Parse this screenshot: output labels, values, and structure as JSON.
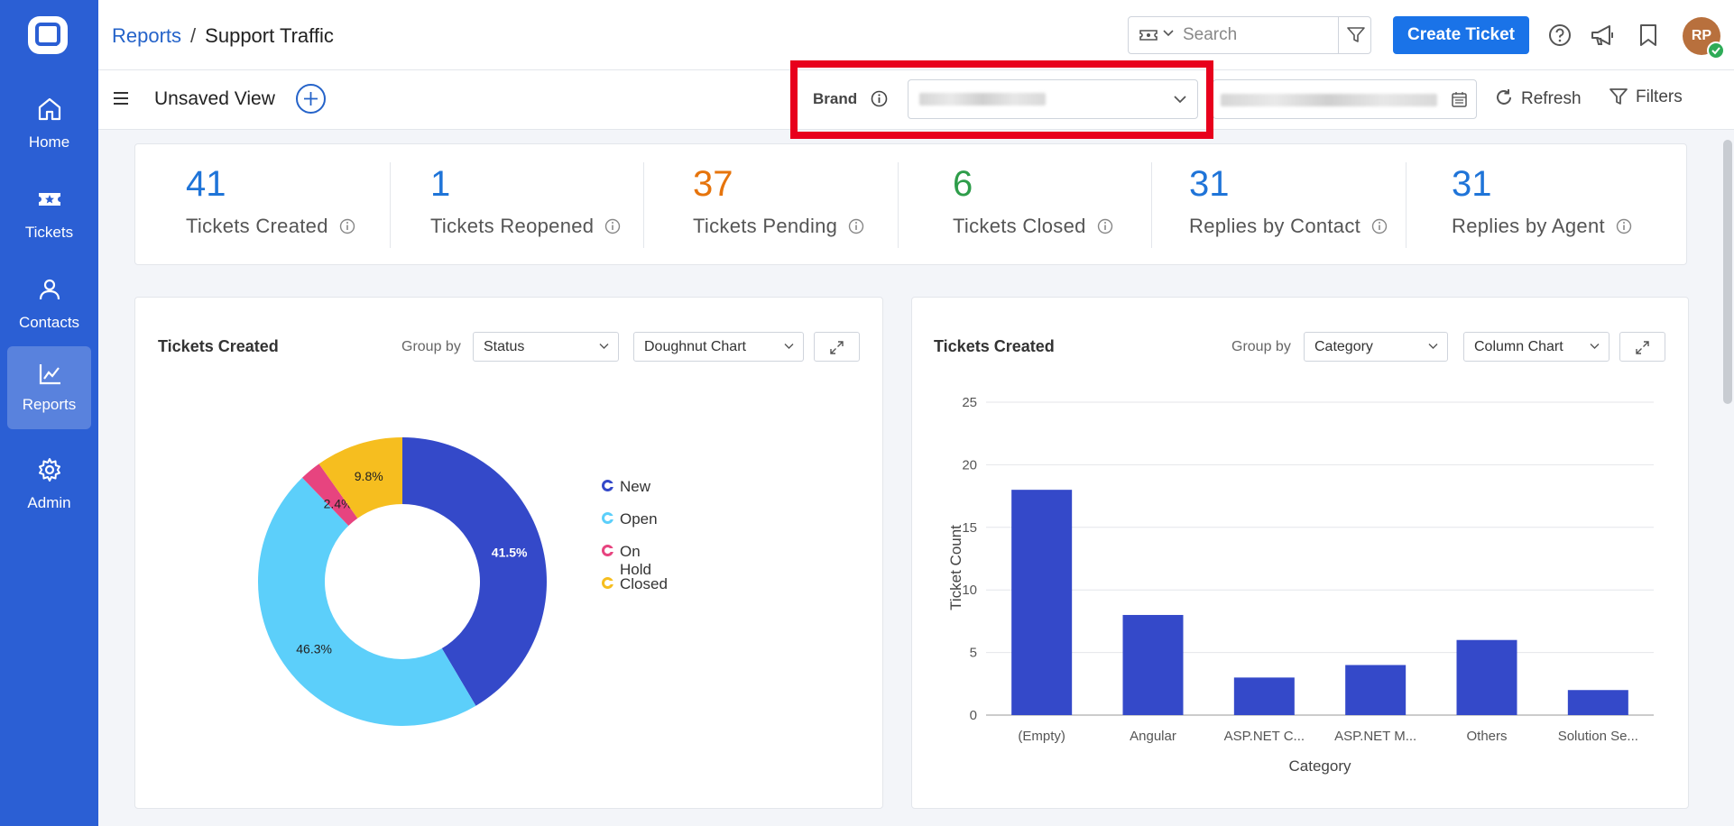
{
  "colors": {
    "sidebar": "#2b5fd4",
    "primary": "#1a73e8",
    "metric_blue": "#1f74d8",
    "metric_orange": "#e6740c",
    "metric_green": "#2e9d4a",
    "highlight": "#e8001c"
  },
  "sidebar": {
    "items": [
      {
        "label": "Home",
        "icon": "home-icon"
      },
      {
        "label": "Tickets",
        "icon": "ticket-icon"
      },
      {
        "label": "Contacts",
        "icon": "contact-icon"
      },
      {
        "label": "Reports",
        "icon": "chart-line-icon",
        "active": true
      },
      {
        "label": "Admin",
        "icon": "gear-icon"
      }
    ]
  },
  "header": {
    "breadcrumb_parent": "Reports",
    "breadcrumb_separator": "/",
    "breadcrumb_current": "Support Traffic",
    "search_placeholder": "Search",
    "create_ticket": "Create Ticket",
    "avatar_initials": "RP"
  },
  "viewbar": {
    "title": "Unsaved View",
    "brand_label": "Brand",
    "refresh": "Refresh",
    "filters": "Filters"
  },
  "metrics": [
    {
      "value": "41",
      "label": "Tickets Created",
      "color": "#1f74d8"
    },
    {
      "value": "1",
      "label": "Tickets Reopened",
      "color": "#1f74d8"
    },
    {
      "value": "37",
      "label": "Tickets Pending",
      "color": "#e6740c"
    },
    {
      "value": "6",
      "label": "Tickets Closed",
      "color": "#2e9d4a"
    },
    {
      "value": "31",
      "label": "Replies by Contact",
      "color": "#1f74d8"
    },
    {
      "value": "31",
      "label": "Replies by Agent",
      "color": "#1f74d8"
    }
  ],
  "left_card": {
    "title": "Tickets Created",
    "group_by_label": "Group by",
    "group_by_value": "Status",
    "chart_type_value": "Doughnut Chart"
  },
  "right_card": {
    "title": "Tickets Created",
    "group_by_label": "Group by",
    "group_by_value": "Category",
    "chart_type_value": "Column Chart"
  },
  "chart_data": [
    {
      "type": "pie",
      "title": "Tickets Created",
      "style": "doughnut",
      "categories": [
        "New",
        "Open",
        "On Hold",
        "Closed"
      ],
      "values": [
        41.5,
        46.3,
        2.4,
        9.8
      ],
      "labels": [
        "41.5%",
        "46.3%",
        "2.4%",
        "9.8%"
      ],
      "colors": [
        "#3449c9",
        "#5ccffa",
        "#e7447f",
        "#f6be1f"
      ],
      "legend": "right"
    },
    {
      "type": "bar",
      "title": "Tickets Created",
      "categories": [
        "(Empty)",
        "Angular",
        "ASP.NET C...",
        "ASP.NET M...",
        "Others",
        "Solution Se..."
      ],
      "values": [
        18,
        8,
        3,
        4,
        6,
        2
      ],
      "xlabel": "Category",
      "ylabel": "Ticket Count",
      "ylim": [
        0,
        25
      ],
      "yticks": [
        "0",
        "5",
        "10",
        "15",
        "20",
        "25"
      ],
      "color": "#3449c9",
      "grid": true
    }
  ]
}
